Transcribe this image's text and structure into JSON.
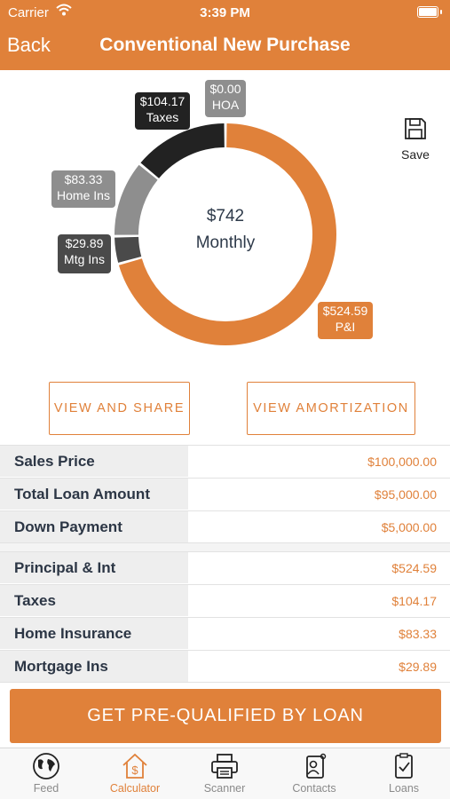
{
  "status_bar": {
    "carrier": "Carrier",
    "time": "3:39 PM"
  },
  "nav": {
    "back_label": "Back",
    "title": "Conventional New Purchase"
  },
  "chart": {
    "center_amount": "$742",
    "center_label": "Monthly",
    "save_label": "Save"
  },
  "chart_data": {
    "type": "pie",
    "variant": "donut",
    "slices": [
      {
        "label": "P&I",
        "value": 524.59,
        "text": "$524.59",
        "color": "#e0813a"
      },
      {
        "label": "Mtg Ins",
        "value": 29.89,
        "text": "$29.89",
        "color": "#4a4a4a"
      },
      {
        "label": "Home Ins",
        "value": 83.33,
        "text": "$83.33",
        "color": "#8e8e8e"
      },
      {
        "label": "Taxes",
        "value": 104.17,
        "text": "$104.17",
        "color": "#222222"
      },
      {
        "label": "HOA",
        "value": 0.0,
        "text": "$0.00",
        "color": "#8e8e8e"
      }
    ]
  },
  "buttons": {
    "view_share": "VIEW AND SHARE",
    "view_amortization": "VIEW AMORTIZATION"
  },
  "loan_rows": [
    {
      "label": "Sales Price",
      "value": "$100,000.00"
    },
    {
      "label": "Total Loan Amount",
      "value": "$95,000.00"
    },
    {
      "label": "Down Payment",
      "value": "$5,000.00"
    }
  ],
  "payment_rows": [
    {
      "label": "Principal & Int",
      "value": "$524.59"
    },
    {
      "label": "Taxes",
      "value": "$104.17"
    },
    {
      "label": "Home Insurance",
      "value": "$83.33"
    },
    {
      "label": "Mortgage Ins",
      "value": "$29.89"
    }
  ],
  "cta_label": "GET PRE-QUALIFIED BY LOAN",
  "tabs": [
    {
      "label": "Feed",
      "icon": "globe-icon"
    },
    {
      "label": "Calculator",
      "icon": "house-dollar-icon",
      "active": true
    },
    {
      "label": "Scanner",
      "icon": "printer-icon"
    },
    {
      "label": "Contacts",
      "icon": "contacts-icon"
    },
    {
      "label": "Loans",
      "icon": "document-check-icon"
    }
  ],
  "colors": {
    "accent": "#e0813a",
    "dark_text": "#2c3645"
  }
}
